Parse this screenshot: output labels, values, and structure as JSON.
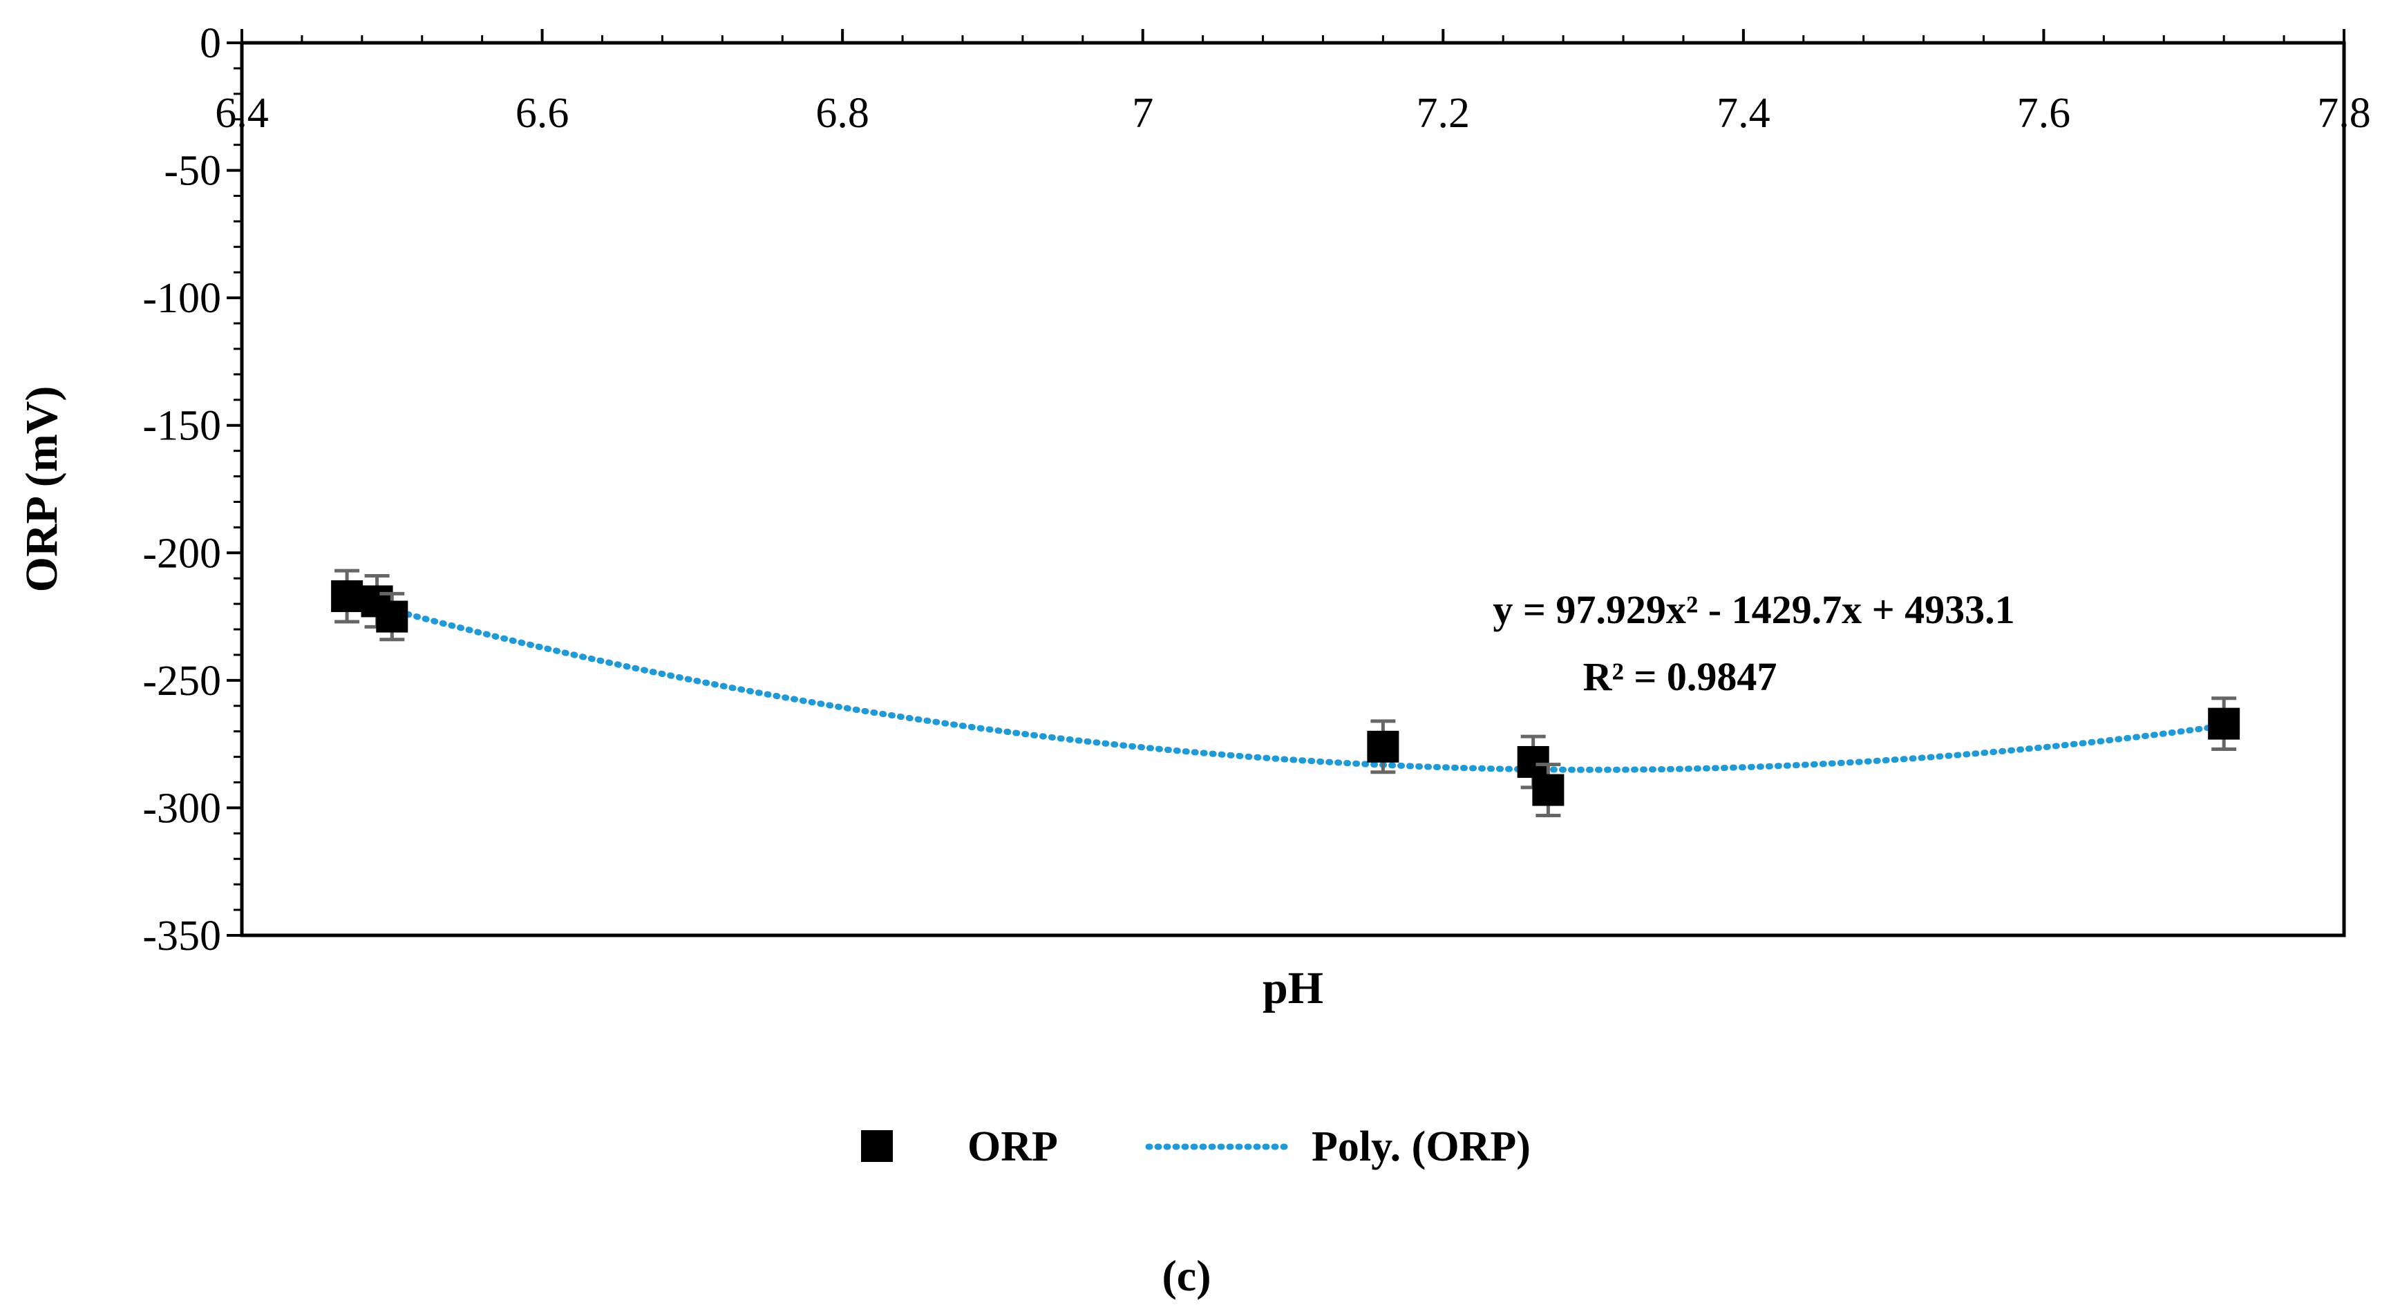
{
  "chart_data": {
    "type": "scatter",
    "title": "",
    "xlabel": "pH",
    "ylabel": "ORP (mV)",
    "xlim": [
      6.4,
      7.8
    ],
    "ylim": [
      -350,
      0
    ],
    "x_ticks": [
      6.4,
      6.6,
      6.8,
      7,
      7.2,
      7.4,
      7.6,
      7.8
    ],
    "x_tick_labels": [
      "6.4",
      "6.6",
      "6.8",
      "7",
      "7.2",
      "7.4",
      "7.6",
      "7.8"
    ],
    "y_ticks": [
      0,
      -50,
      -100,
      -150,
      -200,
      -250,
      -300,
      -350
    ],
    "y_tick_labels": [
      "0",
      "-50",
      "-100",
      "-150",
      "-200",
      "-250",
      "-300",
      "-350"
    ],
    "grid": false,
    "series": [
      {
        "name": "ORP",
        "marker": "square",
        "color": "#000000",
        "points": [
          {
            "x": 6.47,
            "y": -217,
            "err": 10
          },
          {
            "x": 6.49,
            "y": -219,
            "err": 10
          },
          {
            "x": 6.5,
            "y": -225,
            "err": 9
          },
          {
            "x": 7.16,
            "y": -276,
            "err": 10
          },
          {
            "x": 7.26,
            "y": -282,
            "err": 10
          },
          {
            "x": 7.27,
            "y": -293,
            "err": 10
          },
          {
            "x": 7.72,
            "y": -267,
            "err": 10
          }
        ]
      },
      {
        "name": "Poly. (ORP)",
        "type": "trendline",
        "style": "dotted",
        "color": "#1f9ad6",
        "coefficients": [
          97.929,
          -1429.7,
          4933.1
        ],
        "x_range": [
          6.47,
          7.72
        ]
      }
    ],
    "annotations": {
      "equation": "y = 97.929x² - 1429.7x + 4933.1",
      "r_squared": "R² = 0.9847"
    },
    "legend": {
      "position": "bottom",
      "entries": [
        "ORP",
        "Poly. (ORP)"
      ]
    },
    "caption": "(c)"
  }
}
